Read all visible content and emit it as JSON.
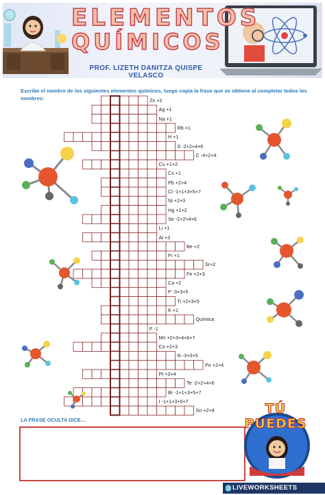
{
  "header": {
    "title_line1": "ELEMENTOS",
    "title_line2": "QUÍMICOS",
    "teacher": "PROF. LIZETH DANITZA QUISPE VELASCO"
  },
  "instructions": "Escribe el nombre de los siguientes elementos químicos, luego copia la frase que se obtiene al completar todos los nombres:",
  "clues": [
    {
      "id": "zn",
      "text": "Zn +2"
    },
    {
      "id": "ag",
      "text": "Ag +1"
    },
    {
      "id": "na",
      "text": "Na +1"
    },
    {
      "id": "rb",
      "text": "Rb +1"
    },
    {
      "id": "h",
      "text": "H +1"
    },
    {
      "id": "s",
      "text": "S -2+2+4+6"
    },
    {
      "id": "c",
      "text": "C -4+2+4"
    },
    {
      "id": "cu",
      "text": "Cu +1+2"
    },
    {
      "id": "cs",
      "text": "Cs +1"
    },
    {
      "id": "pb",
      "text": "Pb +2+4"
    },
    {
      "id": "cl",
      "text": "Cl -1+1+3+5+7"
    },
    {
      "id": "ni",
      "text": "Ni +2+3"
    },
    {
      "id": "hg",
      "text": "Hg +1+2"
    },
    {
      "id": "se",
      "text": "Se -2+2+4+6"
    },
    {
      "id": "li",
      "text": "Li +1"
    },
    {
      "id": "al",
      "text": "Al +3"
    },
    {
      "id": "be",
      "text": "Be +2"
    },
    {
      "id": "fr",
      "text": "Fr +1"
    },
    {
      "id": "sr",
      "text": "Sr+2"
    },
    {
      "id": "fe",
      "text": "Fe +2+3"
    },
    {
      "id": "ca",
      "text": "Ca +2"
    },
    {
      "id": "p",
      "text": "P -3+3+5"
    },
    {
      "id": "ti",
      "text": "Ti +2+3+5"
    },
    {
      "id": "k",
      "text": "K +1"
    },
    {
      "id": "quimica",
      "text": "Química"
    },
    {
      "id": "f",
      "text": "F -1"
    },
    {
      "id": "mn",
      "text": "Mn +2+3+4+6+7"
    },
    {
      "id": "co",
      "text": "Co +2+3"
    },
    {
      "id": "n",
      "text": "N -3+3+5"
    },
    {
      "id": "po",
      "text": "Po +2+4"
    },
    {
      "id": "pt",
      "text": "Pt +2+4"
    },
    {
      "id": "te",
      "text": "Te -2+2+4+6"
    },
    {
      "id": "br",
      "text": "Br -1+1+3+5+7"
    },
    {
      "id": "i",
      "text": "I -1+1+3+5+7"
    },
    {
      "id": "sn",
      "text": "Sn +2+4"
    }
  ],
  "phrase_label": "LA FRASE OCULTA DICE…",
  "phrase_value": "",
  "badge_text": "TÚ PUEDES",
  "footer_brand": "LIVEWORKSHEETS",
  "colors": {
    "grid_line": "#8b2f2f",
    "title_fill": "#f6c0a6",
    "title_stroke": "#c23a4a",
    "accent_blue": "#2a7ab8",
    "phrase_border": "#c8453f",
    "footer_bg": "#1f3764"
  }
}
